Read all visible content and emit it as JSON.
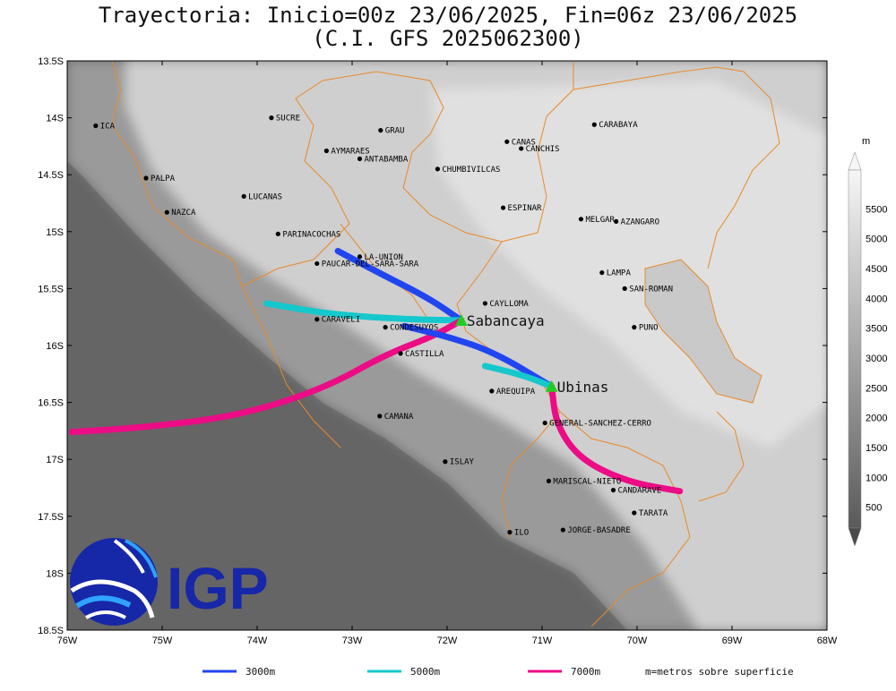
{
  "title": {
    "line1": "Trayectoria: Inicio=00z 23/06/2025, Fin=06z 23/06/2025",
    "line2": "(C.I. GFS 2025062300)"
  },
  "axes": {
    "lat_labels": [
      "13.5S",
      "14S",
      "14.5S",
      "15S",
      "15.5S",
      "16S",
      "16.5S",
      "17S",
      "17.5S",
      "18S",
      "18.5S"
    ],
    "lon_labels": [
      "76W",
      "75W",
      "74W",
      "73W",
      "72W",
      "71W",
      "70W",
      "69W",
      "68W"
    ]
  },
  "colorbar": {
    "unit": "m",
    "labels": [
      "500",
      "1000",
      "1500",
      "2000",
      "2500",
      "3000",
      "3500",
      "4000",
      "4500",
      "5000",
      "5500"
    ]
  },
  "places": [
    {
      "name": "ICA",
      "lon": -75.7,
      "lat": -14.07
    },
    {
      "name": "SUCRE",
      "lon": -73.85,
      "lat": -14.0
    },
    {
      "name": "GRAU",
      "lon": -72.7,
      "lat": -14.11
    },
    {
      "name": "CARABAYA",
      "lon": -70.45,
      "lat": -14.06
    },
    {
      "name": "CANAS",
      "lon": -71.37,
      "lat": -14.21
    },
    {
      "name": "CANCHIS",
      "lon": -71.22,
      "lat": -14.27
    },
    {
      "name": "AYMARAES",
      "lon": -73.27,
      "lat": -14.29
    },
    {
      "name": "ANTABAMBA",
      "lon": -72.92,
      "lat": -14.36
    },
    {
      "name": "CHUMBIVILCAS",
      "lon": -72.1,
      "lat": -14.45
    },
    {
      "name": "PALPA",
      "lon": -75.17,
      "lat": -14.53
    },
    {
      "name": "LUCANAS",
      "lon": -74.14,
      "lat": -14.69
    },
    {
      "name": "NAZCA",
      "lon": -74.95,
      "lat": -14.83
    },
    {
      "name": "ESPINAR",
      "lon": -71.41,
      "lat": -14.79
    },
    {
      "name": "MELGAR",
      "lon": -70.59,
      "lat": -14.89
    },
    {
      "name": "AZANGARO",
      "lon": -70.22,
      "lat": -14.91
    },
    {
      "name": "PARINACOCHAS",
      "lon": -73.78,
      "lat": -15.02
    },
    {
      "name": "LA-UNION",
      "lon": -72.92,
      "lat": -15.22
    },
    {
      "name": "PAUCAR-DEL-SARA-SARA",
      "lon": -73.37,
      "lat": -15.28
    },
    {
      "name": "LAMPA",
      "lon": -70.37,
      "lat": -15.36
    },
    {
      "name": "SAN-ROMAN",
      "lon": -70.13,
      "lat": -15.5
    },
    {
      "name": "CAYLLOMA",
      "lon": -71.6,
      "lat": -15.63
    },
    {
      "name": "CARAVELI",
      "lon": -73.37,
      "lat": -15.77
    },
    {
      "name": "CONDESUYOS",
      "lon": -72.65,
      "lat": -15.84
    },
    {
      "name": "PUNO",
      "lon": -70.03,
      "lat": -15.84
    },
    {
      "name": "CASTILLA",
      "lon": -72.49,
      "lat": -16.07
    },
    {
      "name": "AREQUIPA",
      "lon": -71.53,
      "lat": -16.4
    },
    {
      "name": "CAMANA",
      "lon": -72.71,
      "lat": -16.62
    },
    {
      "name": "GENERAL-SANCHEZ-CERRO",
      "lon": -70.97,
      "lat": -16.68
    },
    {
      "name": "ISLAY",
      "lon": -72.02,
      "lat": -17.02
    },
    {
      "name": "MARISCAL-NIETO",
      "lon": -70.93,
      "lat": -17.19
    },
    {
      "name": "CANDARAVE",
      "lon": -70.25,
      "lat": -17.27
    },
    {
      "name": "TARATA",
      "lon": -70.03,
      "lat": -17.47
    },
    {
      "name": "ILO",
      "lon": -71.34,
      "lat": -17.64
    },
    {
      "name": "JORGE-BASADRE",
      "lon": -70.78,
      "lat": -17.62
    }
  ],
  "volcanoes": [
    {
      "name": "Sabancaya",
      "lon": -71.85,
      "lat": -15.78
    },
    {
      "name": "Ubinas",
      "lon": -70.9,
      "lat": -16.36
    }
  ],
  "trajectories": [
    {
      "level": "3000m",
      "color": "#2146f0",
      "points": [
        [
          -71.85,
          -15.78
        ],
        [
          -72.2,
          -15.58
        ],
        [
          -72.7,
          -15.37
        ],
        [
          -73.15,
          -15.17
        ]
      ]
    },
    {
      "level": "5000m",
      "color": "#14c8cc",
      "points": [
        [
          -71.85,
          -15.78
        ],
        [
          -72.4,
          -15.77
        ],
        [
          -73.2,
          -15.73
        ],
        [
          -73.9,
          -15.63
        ]
      ]
    },
    {
      "level": "7000m",
      "color": "#ec0c86",
      "points": [
        [
          -71.85,
          -15.78
        ],
        [
          -72.15,
          -15.92
        ],
        [
          -72.65,
          -16.08
        ],
        [
          -73.3,
          -16.38
        ],
        [
          -74.2,
          -16.62
        ],
        [
          -75.2,
          -16.72
        ],
        [
          -75.95,
          -16.76
        ]
      ]
    },
    {
      "level": "3000m",
      "color": "#2146f0",
      "points": [
        [
          -70.9,
          -16.36
        ],
        [
          -71.5,
          -16.06
        ],
        [
          -72.0,
          -15.92
        ],
        [
          -72.45,
          -15.83
        ]
      ]
    },
    {
      "level": "5000m",
      "color": "#14c8cc",
      "points": [
        [
          -70.9,
          -16.36
        ],
        [
          -71.2,
          -16.26
        ],
        [
          -71.6,
          -16.18
        ]
      ]
    },
    {
      "level": "7000m",
      "color": "#ec0c86",
      "points": [
        [
          -70.9,
          -16.36
        ],
        [
          -70.85,
          -16.7
        ],
        [
          -70.6,
          -17.0
        ],
        [
          -70.1,
          -17.2
        ],
        [
          -69.55,
          -17.28
        ]
      ]
    }
  ],
  "legend": [
    {
      "label": "3000m",
      "color": "#2146f0"
    },
    {
      "label": "5000m",
      "color": "#14c8cc"
    },
    {
      "label": "7000m",
      "color": "#ec0c86"
    }
  ],
  "legend_note": "m=metros sobre superficie",
  "logo_text": "IGP"
}
